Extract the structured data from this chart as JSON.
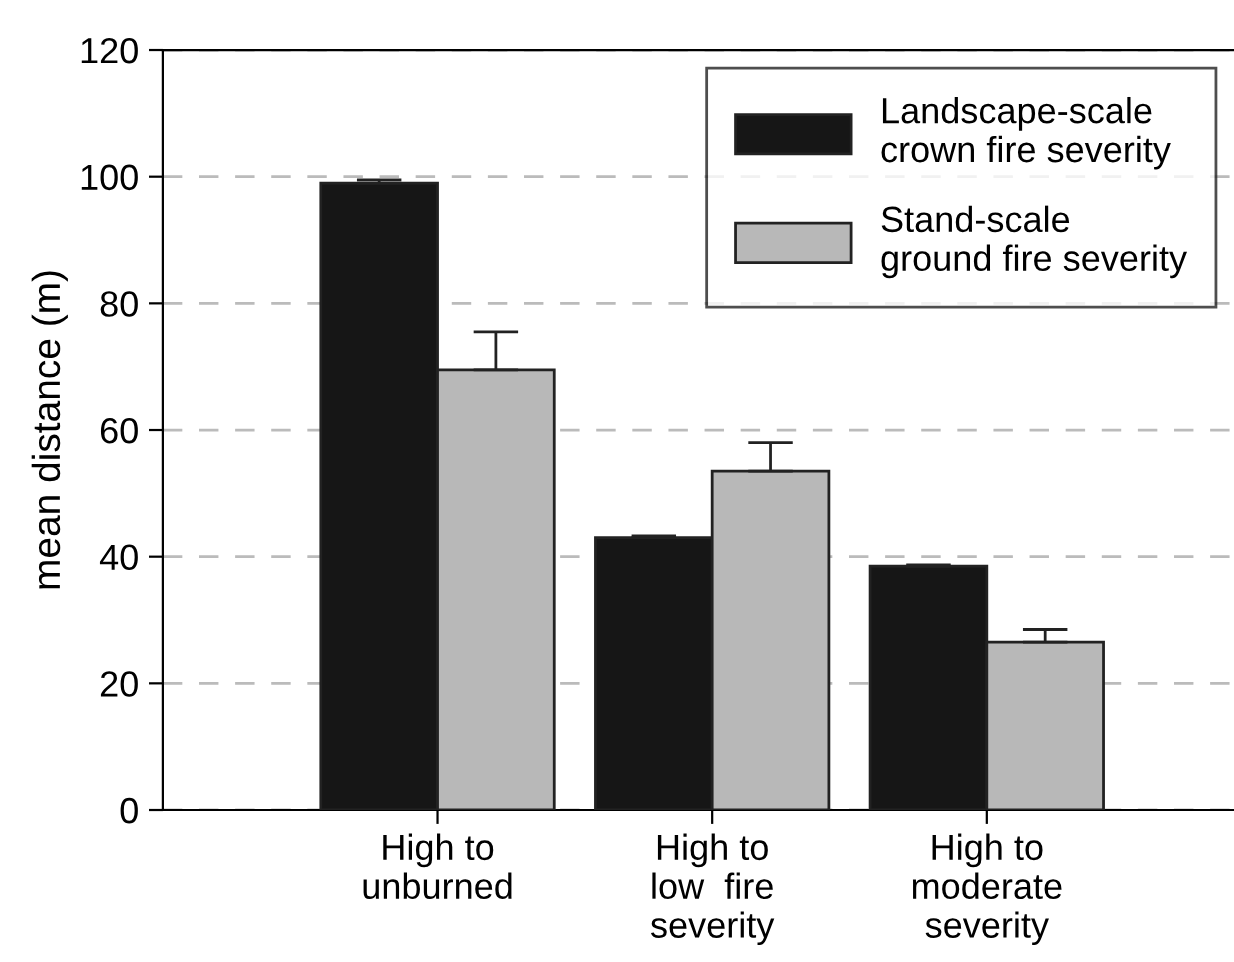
{
  "chart_data": {
    "type": "bar",
    "ylabel": "mean distance (m)",
    "categories": [
      "High to\nunburned",
      "High to\nlow  fire\nseverity",
      "High to\nmoderate\nseverity"
    ],
    "series": [
      {
        "name": "Landscape-scale\ncrown fire severity",
        "color": "#161616",
        "values": [
          99,
          43,
          38.5
        ],
        "errors": [
          [
            99,
            99.5
          ],
          [
            43,
            43.3
          ],
          [
            38.5,
            38.7
          ]
        ]
      },
      {
        "name": "Stand-scale\nground fire severity",
        "color": "#b8b8b8",
        "values": [
          69.5,
          53.5,
          26.5
        ],
        "errors": [
          [
            69.5,
            75.5
          ],
          [
            53.5,
            58
          ],
          [
            26.5,
            28.5
          ]
        ]
      }
    ],
    "ylim": [
      0,
      120
    ],
    "yticks": [
      0,
      20,
      40,
      60,
      80,
      100,
      120
    ],
    "grid": "y",
    "legend": "top right"
  }
}
